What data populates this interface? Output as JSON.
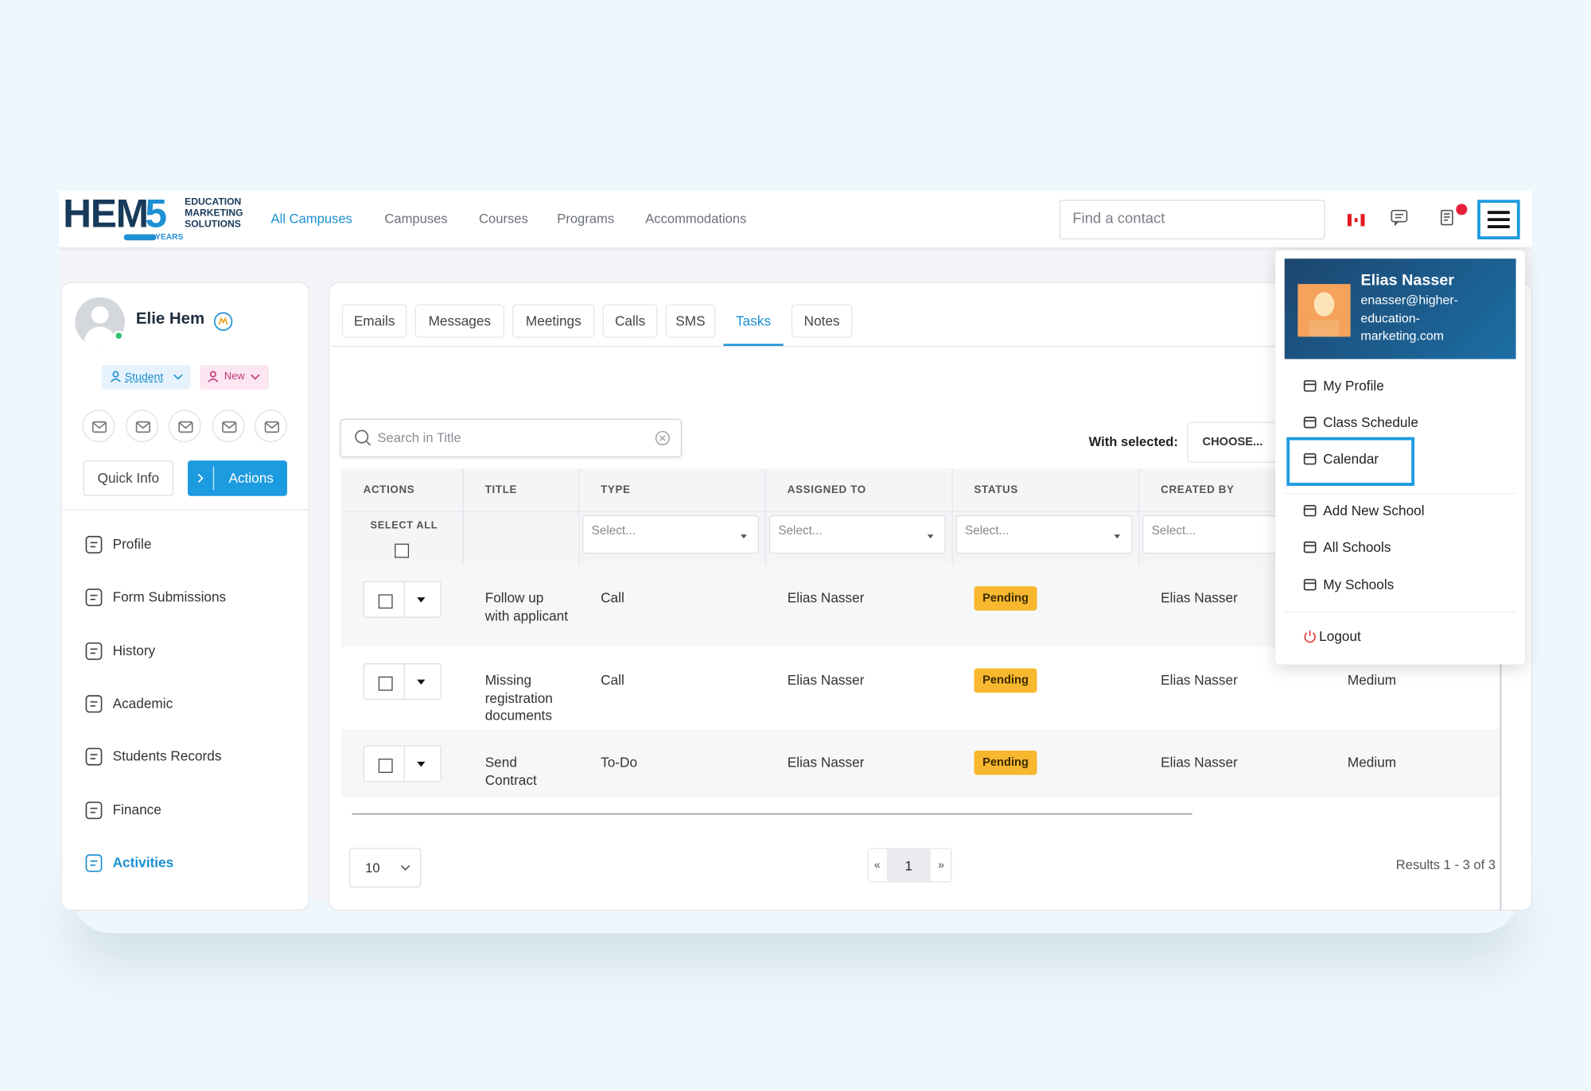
{
  "header": {
    "logo": {
      "mark": "HEM",
      "digit": "5",
      "lines": [
        "EDUCATION",
        "MARKETING",
        "SOLUTIONS"
      ],
      "badge": "YEARS"
    },
    "nav": [
      "All Campuses",
      "Campuses",
      "Courses",
      "Programs",
      "Accommodations"
    ],
    "search_placeholder": "Find a contact"
  },
  "profile": {
    "name": "Elie Hem",
    "tags": [
      "Student",
      "New"
    ],
    "buttons": [
      "Quick Info",
      "Actions"
    ],
    "menu": [
      "Profile",
      "Form Submissions",
      "History",
      "Academic",
      "Students Records",
      "Finance",
      "Activities"
    ]
  },
  "tabs": [
    "Emails",
    "Messages",
    "Meetings",
    "Calls",
    "SMS",
    "Tasks",
    "Notes"
  ],
  "toolbar": {
    "search_placeholder": "Search in Title",
    "with_selected": "With selected:",
    "choose": "CHOOSE..."
  },
  "table": {
    "columns": [
      "ACTIONS",
      "TITLE",
      "TYPE",
      "ASSIGNED TO",
      "STATUS",
      "CREATED BY"
    ],
    "select_all": "SELECT ALL",
    "filter_placeholder": "Select...",
    "rows": [
      {
        "title": "Follow up with applicant",
        "type": "Call",
        "assigned_to": "Elias Nasser",
        "status": "Pending",
        "created_by": "Elias Nasser"
      },
      {
        "title": "Missing registration documents",
        "type": "Call",
        "assigned_to": "Elias Nasser",
        "status": "Pending",
        "created_by": "Elias Nasser",
        "priority": "Medium"
      },
      {
        "title": "Send Contract",
        "type": "To-Do",
        "assigned_to": "Elias Nasser",
        "status": "Pending",
        "created_by": "Elias Nasser",
        "priority": "Medium"
      }
    ]
  },
  "pagination": {
    "page_size": "10",
    "prev": "«",
    "page": "1",
    "next": "»",
    "results": "Results 1 - 3 of 3"
  },
  "user_menu": {
    "name": "Elias Nasser",
    "email": "enasser@higher-education-marketing.com",
    "items": [
      "My Profile",
      "Class Schedule",
      "Calendar",
      "Add New School",
      "All Schools",
      "My Schools",
      "Logout"
    ]
  }
}
